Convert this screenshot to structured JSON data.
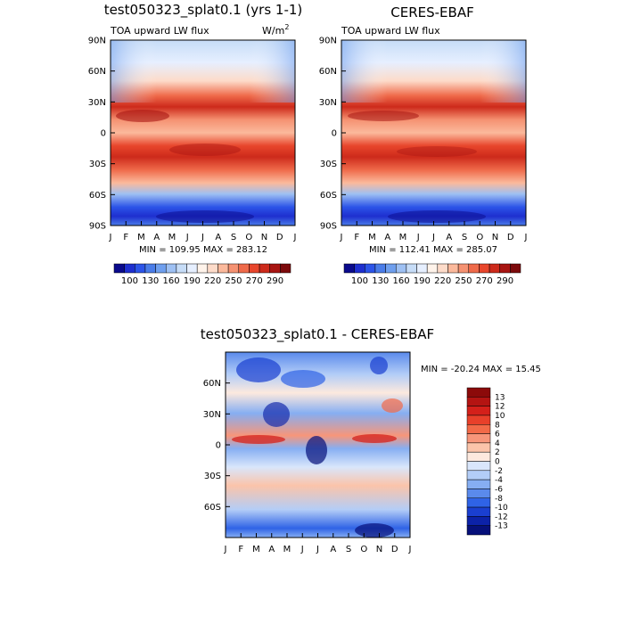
{
  "chart_data": [
    {
      "type": "heatmap",
      "title": "test050323_splat0.1 (yrs 1-1)",
      "subtitle_left": "TOA upward LW flux",
      "units": "W/m",
      "units_superscript": "2",
      "x_ticks": [
        "J",
        "F",
        "M",
        "A",
        "M",
        "J",
        "J",
        "A",
        "S",
        "O",
        "N",
        "D",
        "J"
      ],
      "y_ticks": [
        "90N",
        "60N",
        "30N",
        "0",
        "30S",
        "60S",
        "90S"
      ],
      "ylim": [
        -90,
        90
      ],
      "min_max_text": "MIN = 109.95  MAX = 283.12",
      "min": 109.95,
      "max": 283.12,
      "colorbar_labels": [
        "100",
        "130",
        "160",
        "190",
        "220",
        "250",
        "270",
        "290"
      ],
      "colorbar_colors": [
        "#0a0a8c",
        "#1e2fcf",
        "#2c54e8",
        "#4a7ce8",
        "#6f9fee",
        "#9ec0f3",
        "#c6dcf7",
        "#e6efff",
        "#fff3ea",
        "#fddbc9",
        "#fbb99c",
        "#f59272",
        "#ef6a4a",
        "#e8462c",
        "#cd2a1b",
        "#a81512",
        "#7c0a0c"
      ],
      "description_bands": "zonal mean TOA upward LW flux vs month and latitude"
    },
    {
      "type": "heatmap",
      "title": "CERES-EBAF",
      "subtitle_left": "TOA upward LW flux",
      "x_ticks": [
        "J",
        "F",
        "M",
        "A",
        "M",
        "J",
        "J",
        "A",
        "S",
        "O",
        "N",
        "D",
        "J"
      ],
      "y_ticks": [
        "90N",
        "60N",
        "30N",
        "0",
        "30S",
        "60S",
        "90S"
      ],
      "ylim": [
        -90,
        90
      ],
      "min_max_text": "MIN = 112.41  MAX = 285.07",
      "min": 112.41,
      "max": 285.07,
      "colorbar_labels": [
        "100",
        "130",
        "160",
        "190",
        "220",
        "250",
        "270",
        "290"
      ]
    },
    {
      "type": "heatmap",
      "title": "test050323_splat0.1 - CERES-EBAF",
      "x_ticks": [
        "J",
        "F",
        "M",
        "A",
        "M",
        "J",
        "J",
        "A",
        "S",
        "O",
        "N",
        "D",
        "J"
      ],
      "y_ticks": [
        "60N",
        "30N",
        "0",
        "30S",
        "60S"
      ],
      "ylim": [
        -90,
        90
      ],
      "min_max_text": "MIN = -20.24  MAX =  15.45",
      "min": -20.24,
      "max": 15.45,
      "colorbar_labels": [
        "13",
        "12",
        "10",
        "8",
        "6",
        "4",
        "2",
        "0",
        "-2",
        "-4",
        "-6",
        "-8",
        "-10",
        "-12",
        "-13"
      ],
      "colorbar_colors": [
        "#8c0a0a",
        "#b41412",
        "#d4201a",
        "#e8402a",
        "#f26a48",
        "#f7967a",
        "#fbc4aa",
        "#fde9de",
        "#d9e6fb",
        "#b3cdf7",
        "#86aef2",
        "#5a8aec",
        "#2f63e6",
        "#1a3fd0",
        "#0c22a8",
        "#06107a"
      ]
    }
  ]
}
